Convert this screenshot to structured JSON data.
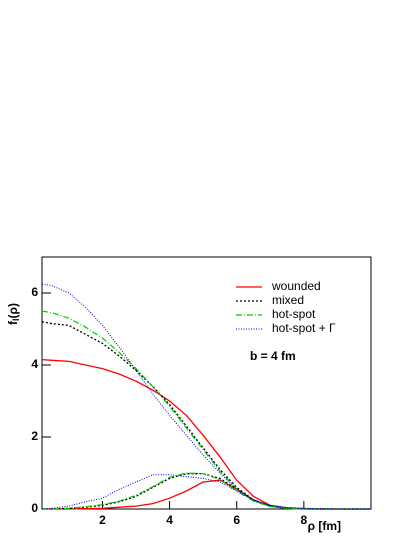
{
  "chart_data": {
    "type": "line",
    "x_label": "ρ [fm]",
    "y_label": "f",
    "y_label_subscript": "l",
    "y_label_suffix": "(ρ)",
    "annotation": "b = 4 fm",
    "xlim": [
      0.2,
      10
    ],
    "ylim": [
      0,
      7
    ],
    "xticks": [
      2,
      4,
      6,
      8
    ],
    "yticks": [
      0,
      2,
      4,
      6
    ],
    "x": [
      0.2,
      0.5,
      1,
      1.5,
      2,
      2.5,
      3,
      3.5,
      4,
      4.5,
      5,
      5.5,
      6,
      6.5,
      7,
      7.5,
      8,
      8.5,
      9,
      9.5,
      10
    ],
    "series": [
      {
        "name": "wounded",
        "color": "#ff0000",
        "line_style": "solid",
        "values": [
          4.15,
          4.13,
          4.1,
          4.0,
          3.9,
          3.75,
          3.55,
          3.3,
          3.0,
          2.6,
          2.05,
          1.45,
          0.8,
          0.35,
          0.1,
          0.03,
          0.01,
          0,
          0,
          0,
          0
        ],
        "secondary_values": [
          0,
          0,
          0,
          0.01,
          0.02,
          0.05,
          0.08,
          0.15,
          0.3,
          0.5,
          0.75,
          0.8,
          0.55,
          0.25,
          0.08,
          0.02,
          0,
          0,
          0,
          0,
          0
        ]
      },
      {
        "name": "mixed",
        "color": "#000000",
        "line_style": "dotted",
        "values": [
          5.2,
          5.15,
          5.1,
          4.85,
          4.6,
          4.25,
          3.85,
          3.4,
          2.9,
          2.3,
          1.7,
          1.1,
          0.6,
          0.25,
          0.08,
          0.02,
          0,
          0,
          0,
          0,
          0
        ],
        "secondary_values": [
          0,
          0,
          0.02,
          0.05,
          0.1,
          0.2,
          0.35,
          0.6,
          0.85,
          0.98,
          0.98,
          0.85,
          0.55,
          0.25,
          0.08,
          0.02,
          0,
          0,
          0,
          0,
          0
        ]
      },
      {
        "name": "hot-spot",
        "color": "#00cc00",
        "line_style": "dash-dot",
        "values": [
          5.5,
          5.45,
          5.3,
          5.05,
          4.75,
          4.35,
          3.9,
          3.4,
          2.85,
          2.25,
          1.65,
          1.05,
          0.55,
          0.22,
          0.07,
          0.02,
          0,
          0,
          0,
          0,
          0
        ],
        "secondary_values": [
          0,
          0,
          0.02,
          0.06,
          0.12,
          0.22,
          0.38,
          0.62,
          0.88,
          1.0,
          0.98,
          0.82,
          0.5,
          0.22,
          0.07,
          0.02,
          0,
          0,
          0,
          0,
          0
        ]
      },
      {
        "name": "hot-spot + Γ",
        "color": "#0000ff",
        "line_style": "fine-dotted",
        "values": [
          6.25,
          6.2,
          6.0,
          5.6,
          5.1,
          4.5,
          3.85,
          3.2,
          2.6,
          2.05,
          1.5,
          1.0,
          0.55,
          0.25,
          0.1,
          0.04,
          0.02,
          0.01,
          0,
          0,
          0
        ],
        "secondary_values": [
          0,
          0.02,
          0.08,
          0.2,
          0.3,
          0.55,
          0.75,
          0.95,
          0.95,
          0.9,
          0.85,
          0.75,
          0.5,
          0.25,
          0.1,
          0.04,
          0.02,
          0,
          0,
          0,
          0
        ]
      }
    ]
  }
}
